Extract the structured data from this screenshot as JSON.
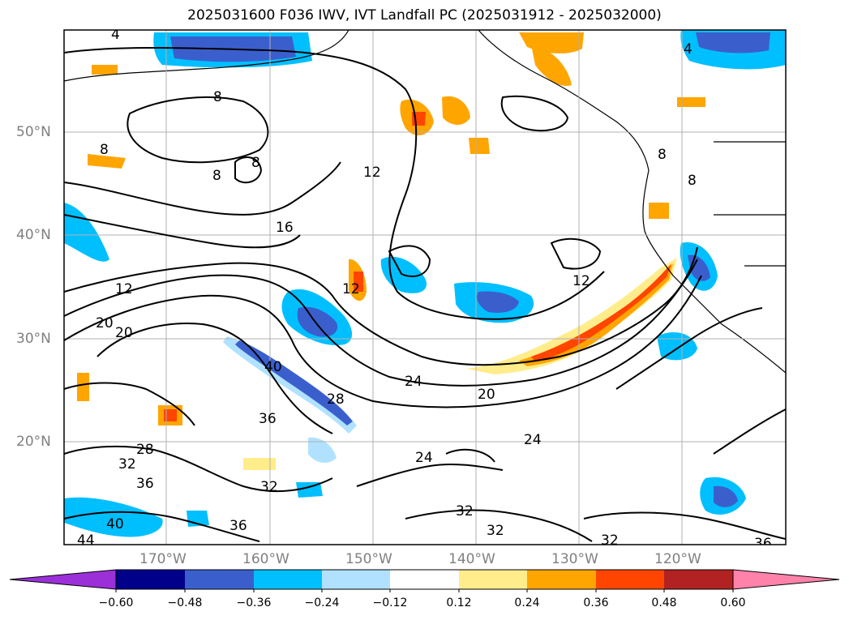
{
  "title": "2025031600 F036 IWV, IVT Landfall PC (2025031912 - 2025032000)",
  "lat_labels": [
    "50°N",
    "40°N",
    "30°N",
    "20°N"
  ],
  "lon_labels": [
    "170°W",
    "160°W",
    "150°W",
    "140°W",
    "130°W",
    "120°W"
  ],
  "colorbar": {
    "ticks": [
      "−0.60",
      "−0.48",
      "−0.36",
      "−0.24",
      "−0.12",
      "0.12",
      "0.24",
      "0.36",
      "0.48",
      "0.60"
    ],
    "colors": [
      "#9b30d9",
      "#00008b",
      "#3a5fcd",
      "#00bfff",
      "#b0e2ff",
      "#ffffff",
      "#ffec8b",
      "#ffa500",
      "#ff4500",
      "#b22222",
      "#ff82ab"
    ]
  },
  "contour_labels": [
    "4",
    "4",
    "8",
    "8",
    "8",
    "8",
    "8",
    "8",
    "12",
    "12",
    "12",
    "12",
    "16",
    "20",
    "20",
    "20",
    "24",
    "24",
    "24",
    "28",
    "28",
    "32",
    "32",
    "32",
    "32",
    "32",
    "36",
    "36",
    "36",
    "36",
    "40",
    "40",
    "44"
  ]
}
